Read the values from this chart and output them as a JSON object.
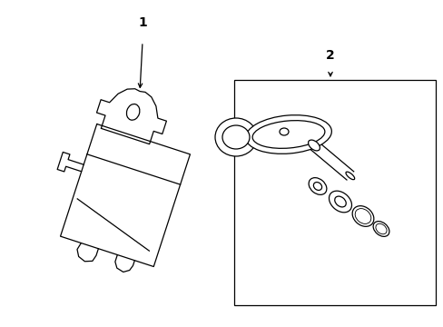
{
  "background_color": "#ffffff",
  "line_color": "#000000",
  "label1": "1",
  "label2": "2",
  "fig_width": 4.89,
  "fig_height": 3.6,
  "dpi": 100
}
